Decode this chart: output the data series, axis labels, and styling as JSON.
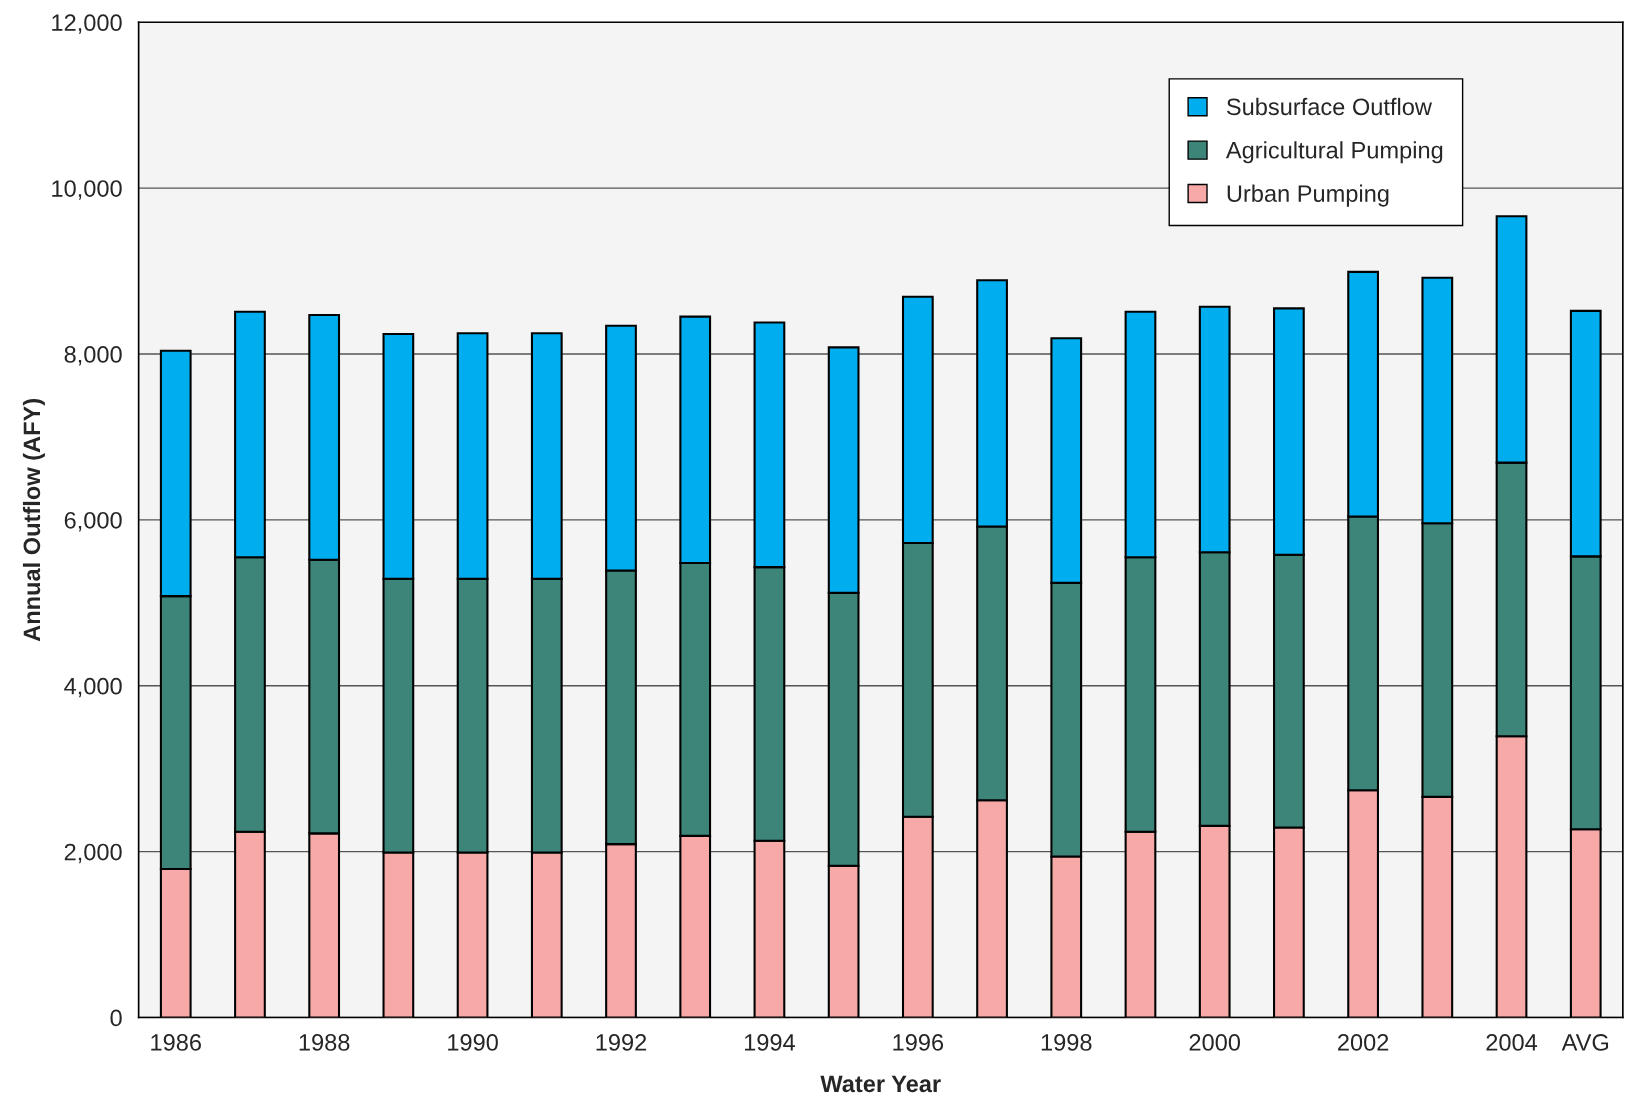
{
  "chart_data": {
    "type": "bar",
    "stacked": true,
    "xlabel": "Water Year",
    "ylabel": "Annual Outflow (AFY)",
    "categories": [
      "1986",
      null,
      "1988",
      null,
      "1990",
      null,
      "1992",
      null,
      "1994",
      null,
      "1996",
      null,
      "1998",
      null,
      "2000",
      null,
      "2002",
      null,
      "2004",
      "AVG"
    ],
    "series": [
      {
        "name": "Urban Pumping",
        "color": "#f7a9a8",
        "values": [
          1790,
          2240,
          2220,
          1990,
          1990,
          1990,
          2090,
          2190,
          2130,
          1830,
          2420,
          2620,
          1940,
          2240,
          2310,
          2290,
          2740,
          2660,
          3390,
          2270
        ]
      },
      {
        "name": "Agricultural Pumping",
        "color": "#3d8479",
        "values": [
          3290,
          3310,
          3300,
          3300,
          3300,
          3300,
          3300,
          3290,
          3300,
          3290,
          3300,
          3300,
          3300,
          3310,
          3300,
          3290,
          3300,
          3300,
          3300,
          3290
        ]
      },
      {
        "name": "Subsurface Outflow",
        "color": "#00aeef",
        "values": [
          2960,
          2960,
          2950,
          2950,
          2960,
          2960,
          2950,
          2970,
          2950,
          2960,
          2970,
          2970,
          2950,
          2960,
          2960,
          2970,
          2950,
          2960,
          2970,
          2960
        ]
      }
    ],
    "ylim": [
      0,
      12000
    ],
    "yticks": [
      {
        "value": 0,
        "label": "0"
      },
      {
        "value": 2000,
        "label": "2,000"
      },
      {
        "value": 4000,
        "label": "4,000"
      },
      {
        "value": 6000,
        "label": "6,000"
      },
      {
        "value": 8000,
        "label": "8,000"
      },
      {
        "value": 10000,
        "label": "10,000"
      },
      {
        "value": 12000,
        "label": "12,000"
      }
    ],
    "grid": "y",
    "legend": "top right"
  }
}
